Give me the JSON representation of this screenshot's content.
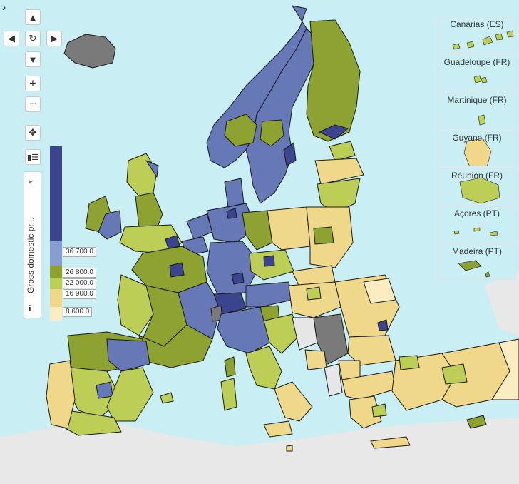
{
  "controls": {
    "toggle_icon": "chevron-right-icon",
    "pan_up": "▲",
    "pan_left": "◀",
    "reset": "↻",
    "pan_right": "▶",
    "pan_down": "▼",
    "zoom_in": "+",
    "zoom_out": "−",
    "move": "✥",
    "layers": "▮☰"
  },
  "legend": {
    "title": "Gross domestic pr...",
    "info": "i",
    "arrow": "▸",
    "classes": [
      {
        "color": "#3a448f",
        "label": ""
      },
      {
        "color": "#6678b6",
        "label": "36 700.0"
      },
      {
        "color": "#889dd0",
        "label": "26 800.0"
      },
      {
        "color": "#8da231",
        "label": "22 000.0"
      },
      {
        "color": "#bcce56",
        "label": "16 900.0"
      },
      {
        "color": "#f0d88a",
        "label": "8 600.0"
      },
      {
        "color": "#fcecc2",
        "label": ""
      }
    ]
  },
  "insets": [
    {
      "label": "Canarias (ES)"
    },
    {
      "label": "Guadeloupe (FR)"
    },
    {
      "label": "Martinique (FR)"
    },
    {
      "label": "Guyane (FR)"
    },
    {
      "label": "Réunion (FR)"
    },
    {
      "label": "Açores (PT)"
    },
    {
      "label": "Madeira (PT)"
    }
  ],
  "colors": {
    "sea": "#c9eef3",
    "land_outside": "#eaeaea",
    "no_data": "#7a7a7a",
    "border": "#1a1a1a"
  }
}
